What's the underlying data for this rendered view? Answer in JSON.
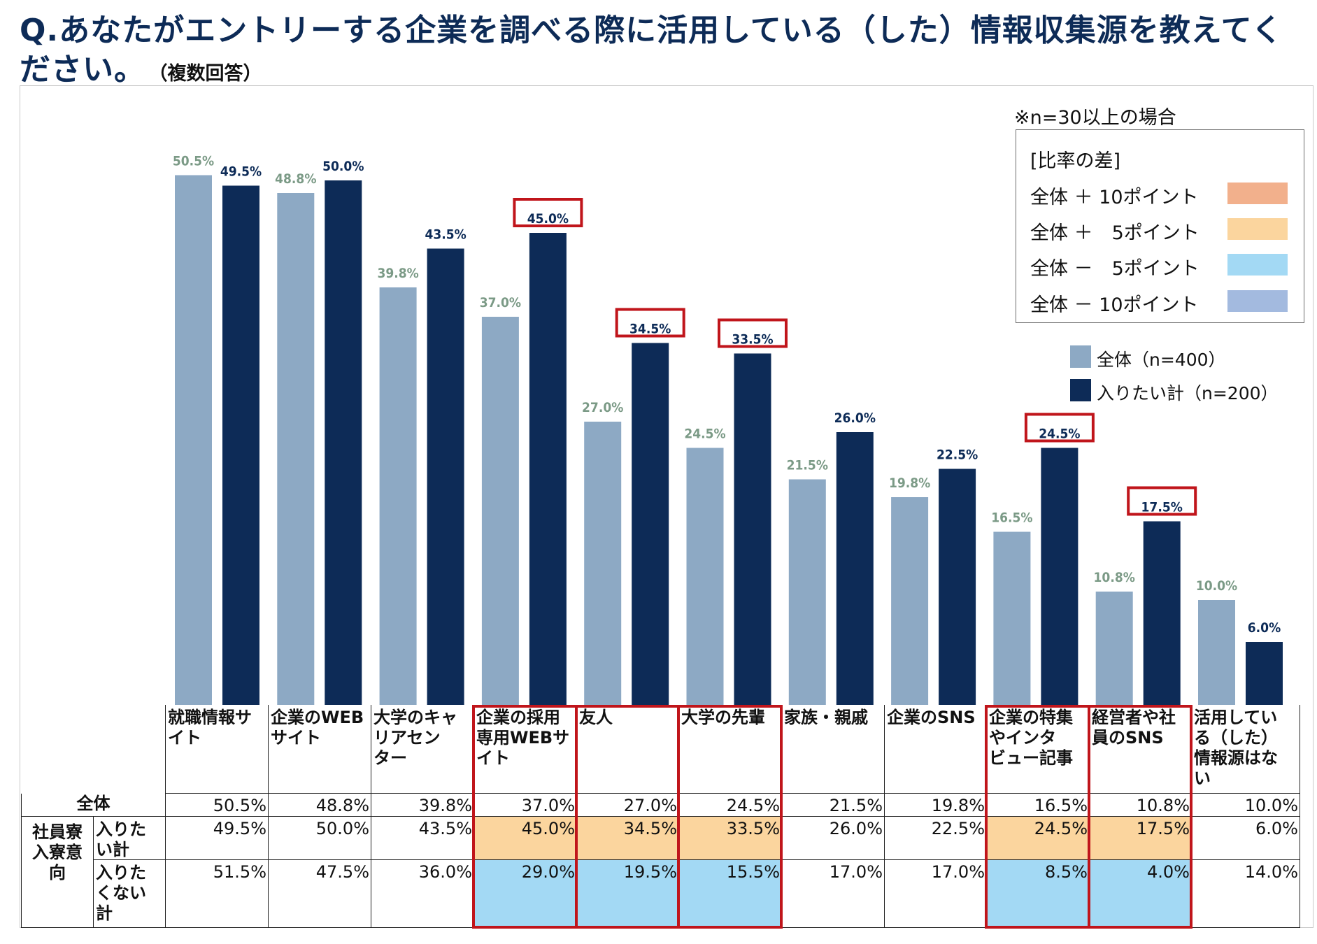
{
  "title": {
    "question": "Q.あなたがエントリーする企業を調べる際に活用している（した）情報収集源を教えてください。",
    "note_inline": "（複数回答）"
  },
  "note": "※n=30以上の場合",
  "diff_legend": {
    "header": "[比率の差]",
    "items": [
      {
        "label": "全体 ＋ 10ポイント",
        "color": "#f2b08c"
      },
      {
        "label": "全体 ＋　5ポイント",
        "color": "#fbd59e"
      },
      {
        "label": "全体 －　5ポイント",
        "color": "#a3d9f4"
      },
      {
        "label": "全体 － 10ポイント",
        "color": "#a3badf"
      }
    ]
  },
  "series_legend": [
    {
      "label": "全体（n=400）",
      "color": "#8da9c4"
    },
    {
      "label": "入りたい計（n=200）",
      "color": "#0d2b57"
    }
  ],
  "chart_data": {
    "type": "bar",
    "categories": [
      "就職情報サイト",
      "企業のWEBサイト",
      "大学のキャリアセンター",
      "企業の採用専用WEBサイト",
      "友人",
      "大学の先輩",
      "家族・親戚",
      "企業のSNS",
      "企業の特集やインタビュー記事",
      "経営者や社員のSNS",
      "活用している（した）情報源はない"
    ],
    "category_lines": [
      [
        "就職情報サ",
        "イト"
      ],
      [
        "企業のWEB",
        "サイト"
      ],
      [
        "大学のキャ",
        "リアセン",
        "ター"
      ],
      [
        "企業の採用",
        "専用WEBサ",
        "イト"
      ],
      [
        "友人"
      ],
      [
        "大学の先輩"
      ],
      [
        "家族・親戚"
      ],
      [
        "企業のSNS"
      ],
      [
        "企業の特集",
        "やインタ",
        "ビュー記事"
      ],
      [
        "経営者や社",
        "員のSNS"
      ],
      [
        "活用してい",
        "る（した）",
        "情報源はな",
        "い"
      ]
    ],
    "series": [
      {
        "name": "全体（n=400）",
        "color": "#8da9c4",
        "label_color": "#7b9a86",
        "values": [
          50.5,
          48.8,
          39.8,
          37.0,
          27.0,
          24.5,
          21.5,
          19.8,
          16.5,
          10.8,
          10.0
        ]
      },
      {
        "name": "入りたい計（n=200）",
        "color": "#0d2b57",
        "label_color": "#0d2b57",
        "values": [
          49.5,
          50.0,
          43.5,
          45.0,
          34.5,
          33.5,
          26.0,
          22.5,
          24.5,
          17.5,
          6.0
        ]
      }
    ],
    "highlighted_categories": [
      3,
      4,
      5,
      8,
      9
    ],
    "ylim": [
      0,
      55
    ],
    "value_suffix": "%"
  },
  "table": {
    "rows": [
      {
        "label": "全体",
        "values": [
          "50.5%",
          "48.8%",
          "39.8%",
          "37.0%",
          "27.0%",
          "24.5%",
          "21.5%",
          "19.8%",
          "16.5%",
          "10.8%",
          "10.0%"
        ],
        "fills": [
          "",
          "",
          "",
          "",
          "",
          "",
          "",
          "",
          "",
          "",
          ""
        ]
      },
      {
        "group": [
          "社員寮",
          "入寮意",
          "向"
        ],
        "label": [
          "入りた",
          "い計"
        ],
        "values": [
          "49.5%",
          "50.0%",
          "43.5%",
          "45.0%",
          "34.5%",
          "33.5%",
          "26.0%",
          "22.5%",
          "24.5%",
          "17.5%",
          "6.0%"
        ],
        "fills": [
          "",
          "",
          "",
          "#fbd59e",
          "#fbd59e",
          "#fbd59e",
          "",
          "",
          "#fbd59e",
          "#fbd59e",
          ""
        ]
      },
      {
        "label": [
          "入りた",
          "くない",
          "計"
        ],
        "values": [
          "51.5%",
          "47.5%",
          "36.0%",
          "29.0%",
          "19.5%",
          "15.5%",
          "17.0%",
          "17.0%",
          "8.5%",
          "4.0%",
          "14.0%"
        ],
        "fills": [
          "",
          "",
          "",
          "#a3d9f4",
          "#a3d9f4",
          "#a3d9f4",
          "",
          "",
          "#a3d9f4",
          "#a3d9f4",
          ""
        ]
      }
    ]
  },
  "colors": {
    "highlight_box": "#c0151b",
    "axis_line": "#222222"
  }
}
